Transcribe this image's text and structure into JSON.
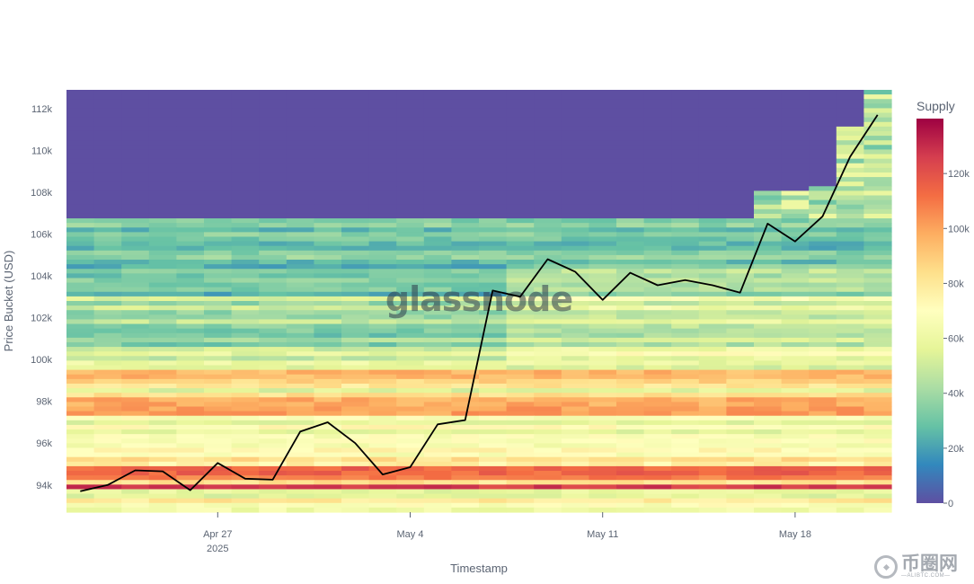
{
  "chart_data": {
    "type": "heatmap",
    "title": "",
    "xlabel": "Timestamp",
    "ylabel": "Price Bucket (USD)",
    "x_ticks": [
      {
        "date": "2025-04-27",
        "label": "Apr 27",
        "sublabel": "2025"
      },
      {
        "date": "2025-05-04",
        "label": "May 4",
        "sublabel": ""
      },
      {
        "date": "2025-05-11",
        "label": "May 11",
        "sublabel": ""
      },
      {
        "date": "2025-05-18",
        "label": "May 18",
        "sublabel": ""
      }
    ],
    "y_ticks": [
      {
        "value": 94000,
        "label": "94k"
      },
      {
        "value": 96000,
        "label": "96k"
      },
      {
        "value": 98000,
        "label": "98k"
      },
      {
        "value": 100000,
        "label": "100k"
      },
      {
        "value": 102000,
        "label": "102k"
      },
      {
        "value": 104000,
        "label": "104k"
      },
      {
        "value": 106000,
        "label": "106k"
      },
      {
        "value": 108000,
        "label": "108k"
      },
      {
        "value": 110000,
        "label": "110k"
      },
      {
        "value": 112000,
        "label": "112k"
      }
    ],
    "ylim": [
      92700,
      112900
    ],
    "xlim": [
      "2025-04-21T12:00",
      "2025-05-21T12:00"
    ],
    "grid": false,
    "colorbar": {
      "title": "Supply",
      "range": [
        0,
        140000
      ],
      "ticks": [
        {
          "value": 0,
          "label": "0"
        },
        {
          "value": 20000,
          "label": "20k"
        },
        {
          "value": 40000,
          "label": "40k"
        },
        {
          "value": 60000,
          "label": "60k"
        },
        {
          "value": 80000,
          "label": "80k"
        },
        {
          "value": 100000,
          "label": "100k"
        },
        {
          "value": 120000,
          "label": "120k"
        }
      ],
      "colorscale": "Spectral (reversed)"
    },
    "price_line": {
      "color": "#000000",
      "dates": [
        "2025-04-22",
        "2025-04-23",
        "2025-04-24",
        "2025-04-25",
        "2025-04-26",
        "2025-04-27",
        "2025-04-28",
        "2025-04-29",
        "2025-04-30",
        "2025-05-01",
        "2025-05-02",
        "2025-05-03",
        "2025-05-04",
        "2025-05-05",
        "2025-05-06",
        "2025-05-07",
        "2025-05-08",
        "2025-05-09",
        "2025-05-10",
        "2025-05-11",
        "2025-05-12",
        "2025-05-13",
        "2025-05-14",
        "2025-05-15",
        "2025-05-16",
        "2025-05-17",
        "2025-05-18",
        "2025-05-19",
        "2025-05-20",
        "2025-05-21"
      ],
      "values": [
        93700,
        94000,
        94700,
        94650,
        93750,
        95050,
        94300,
        94250,
        96550,
        97000,
        96000,
        94500,
        94850,
        96900,
        97100,
        103300,
        103000,
        104800,
        104200,
        102850,
        104150,
        103550,
        103800,
        103550,
        103200,
        106500,
        105650,
        106850,
        109700,
        111700
      ]
    }
  },
  "watermark": "glassnode",
  "brand": {
    "name": "币圈网",
    "url": "—ALIBTC.COM—"
  }
}
